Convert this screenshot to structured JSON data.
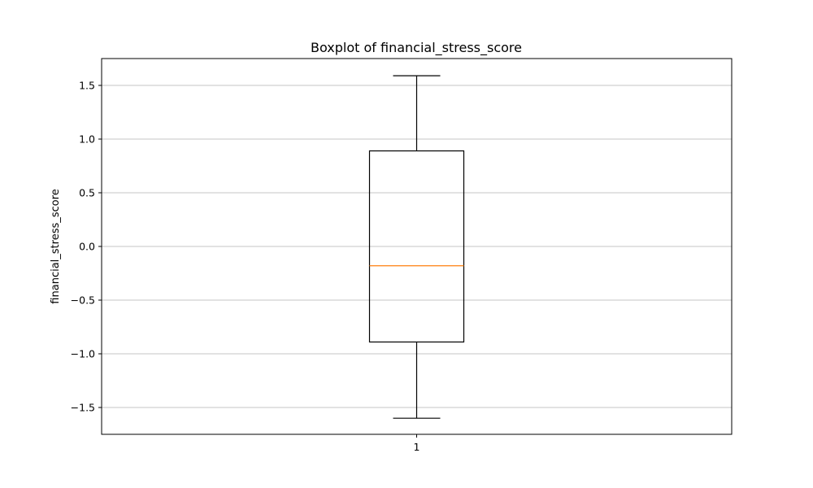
{
  "chart_data": {
    "type": "boxplot",
    "title": "Boxplot of financial_stress_score",
    "xlabel": "",
    "ylabel": "financial_stress_score",
    "ylim": [
      -1.75,
      1.75
    ],
    "y_ticks": [
      -1.5,
      -1.0,
      -0.5,
      0.0,
      0.5,
      1.0,
      1.5
    ],
    "y_tick_labels": [
      "−1.5",
      "−1.0",
      "−0.5",
      "0.0",
      "0.5",
      "1.0",
      "1.5"
    ],
    "categories": [
      "1"
    ],
    "grid": "horizontal",
    "boxes": [
      {
        "label": "1",
        "whisker_low": -1.6,
        "q1": -0.89,
        "median": -0.18,
        "q3": 0.89,
        "whisker_high": 1.59
      }
    ],
    "colors": {
      "box": "#000000",
      "median": "#ff7f0e",
      "grid": "#b0b0b0"
    }
  }
}
